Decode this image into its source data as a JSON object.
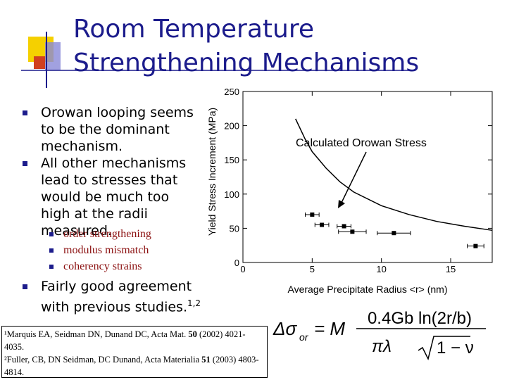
{
  "title": "Room Temperature Strengthening Mechanisms",
  "bullets": [
    "Orowan looping seems to be the dominant mechanism.",
    "All other mechanisms lead to stresses that would be much too high at the radii measured."
  ],
  "sub_bullets": [
    "order strengthening",
    "modulus mismatch",
    "coherency strains"
  ],
  "last_bullet": {
    "text": "Fairly good agreement with previous studies.",
    "superscript": "1,2"
  },
  "references": [
    {
      "text": "¹Marquis EA, Seidman DN, Dunand DC, Acta Mat. ",
      "volume": "50",
      "rest": " (2002) 4021-4035."
    },
    {
      "text": "²Fuller, CB, DN Seidman, DC Dunand, Acta Materialia ",
      "volume": "51",
      "rest": " (2003) 4803-4814."
    }
  ],
  "formula": {
    "lhs": "Δσ",
    "lhs_sub": "or",
    "eq": "= M",
    "numerator": "0.4Gb ln(2r/b)",
    "denominator_left": "πλ",
    "denominator_root": "1 − ν"
  },
  "chart_data": {
    "type": "scatter",
    "xlabel": "Average Precipitate Radius <r> (nm)",
    "ylabel": "Yield Stress Increment (MPa)",
    "annotation": "Calculated Orowan Stress",
    "xlim": [
      0,
      18
    ],
    "ylim": [
      0,
      250
    ],
    "xticks": [
      0,
      5,
      10,
      15
    ],
    "yticks": [
      0,
      50,
      100,
      150,
      200,
      250
    ],
    "series": [
      {
        "x": [
          5,
          5.7,
          7.3,
          7.9,
          10.9,
          16.8
        ],
        "values": [
          70,
          55,
          53,
          45,
          43,
          24
        ],
        "xerr": [
          0.5,
          0.5,
          0.5,
          1,
          1.2,
          0.6
        ],
        "color": "#000000"
      }
    ],
    "curve": {
      "x": [
        3.8,
        4.5,
        5,
        6,
        7,
        8,
        10,
        12,
        14,
        16,
        18
      ],
      "values": [
        210,
        180,
        162,
        138,
        118,
        103,
        83,
        70,
        60,
        53,
        47
      ],
      "color": "#000000"
    }
  }
}
